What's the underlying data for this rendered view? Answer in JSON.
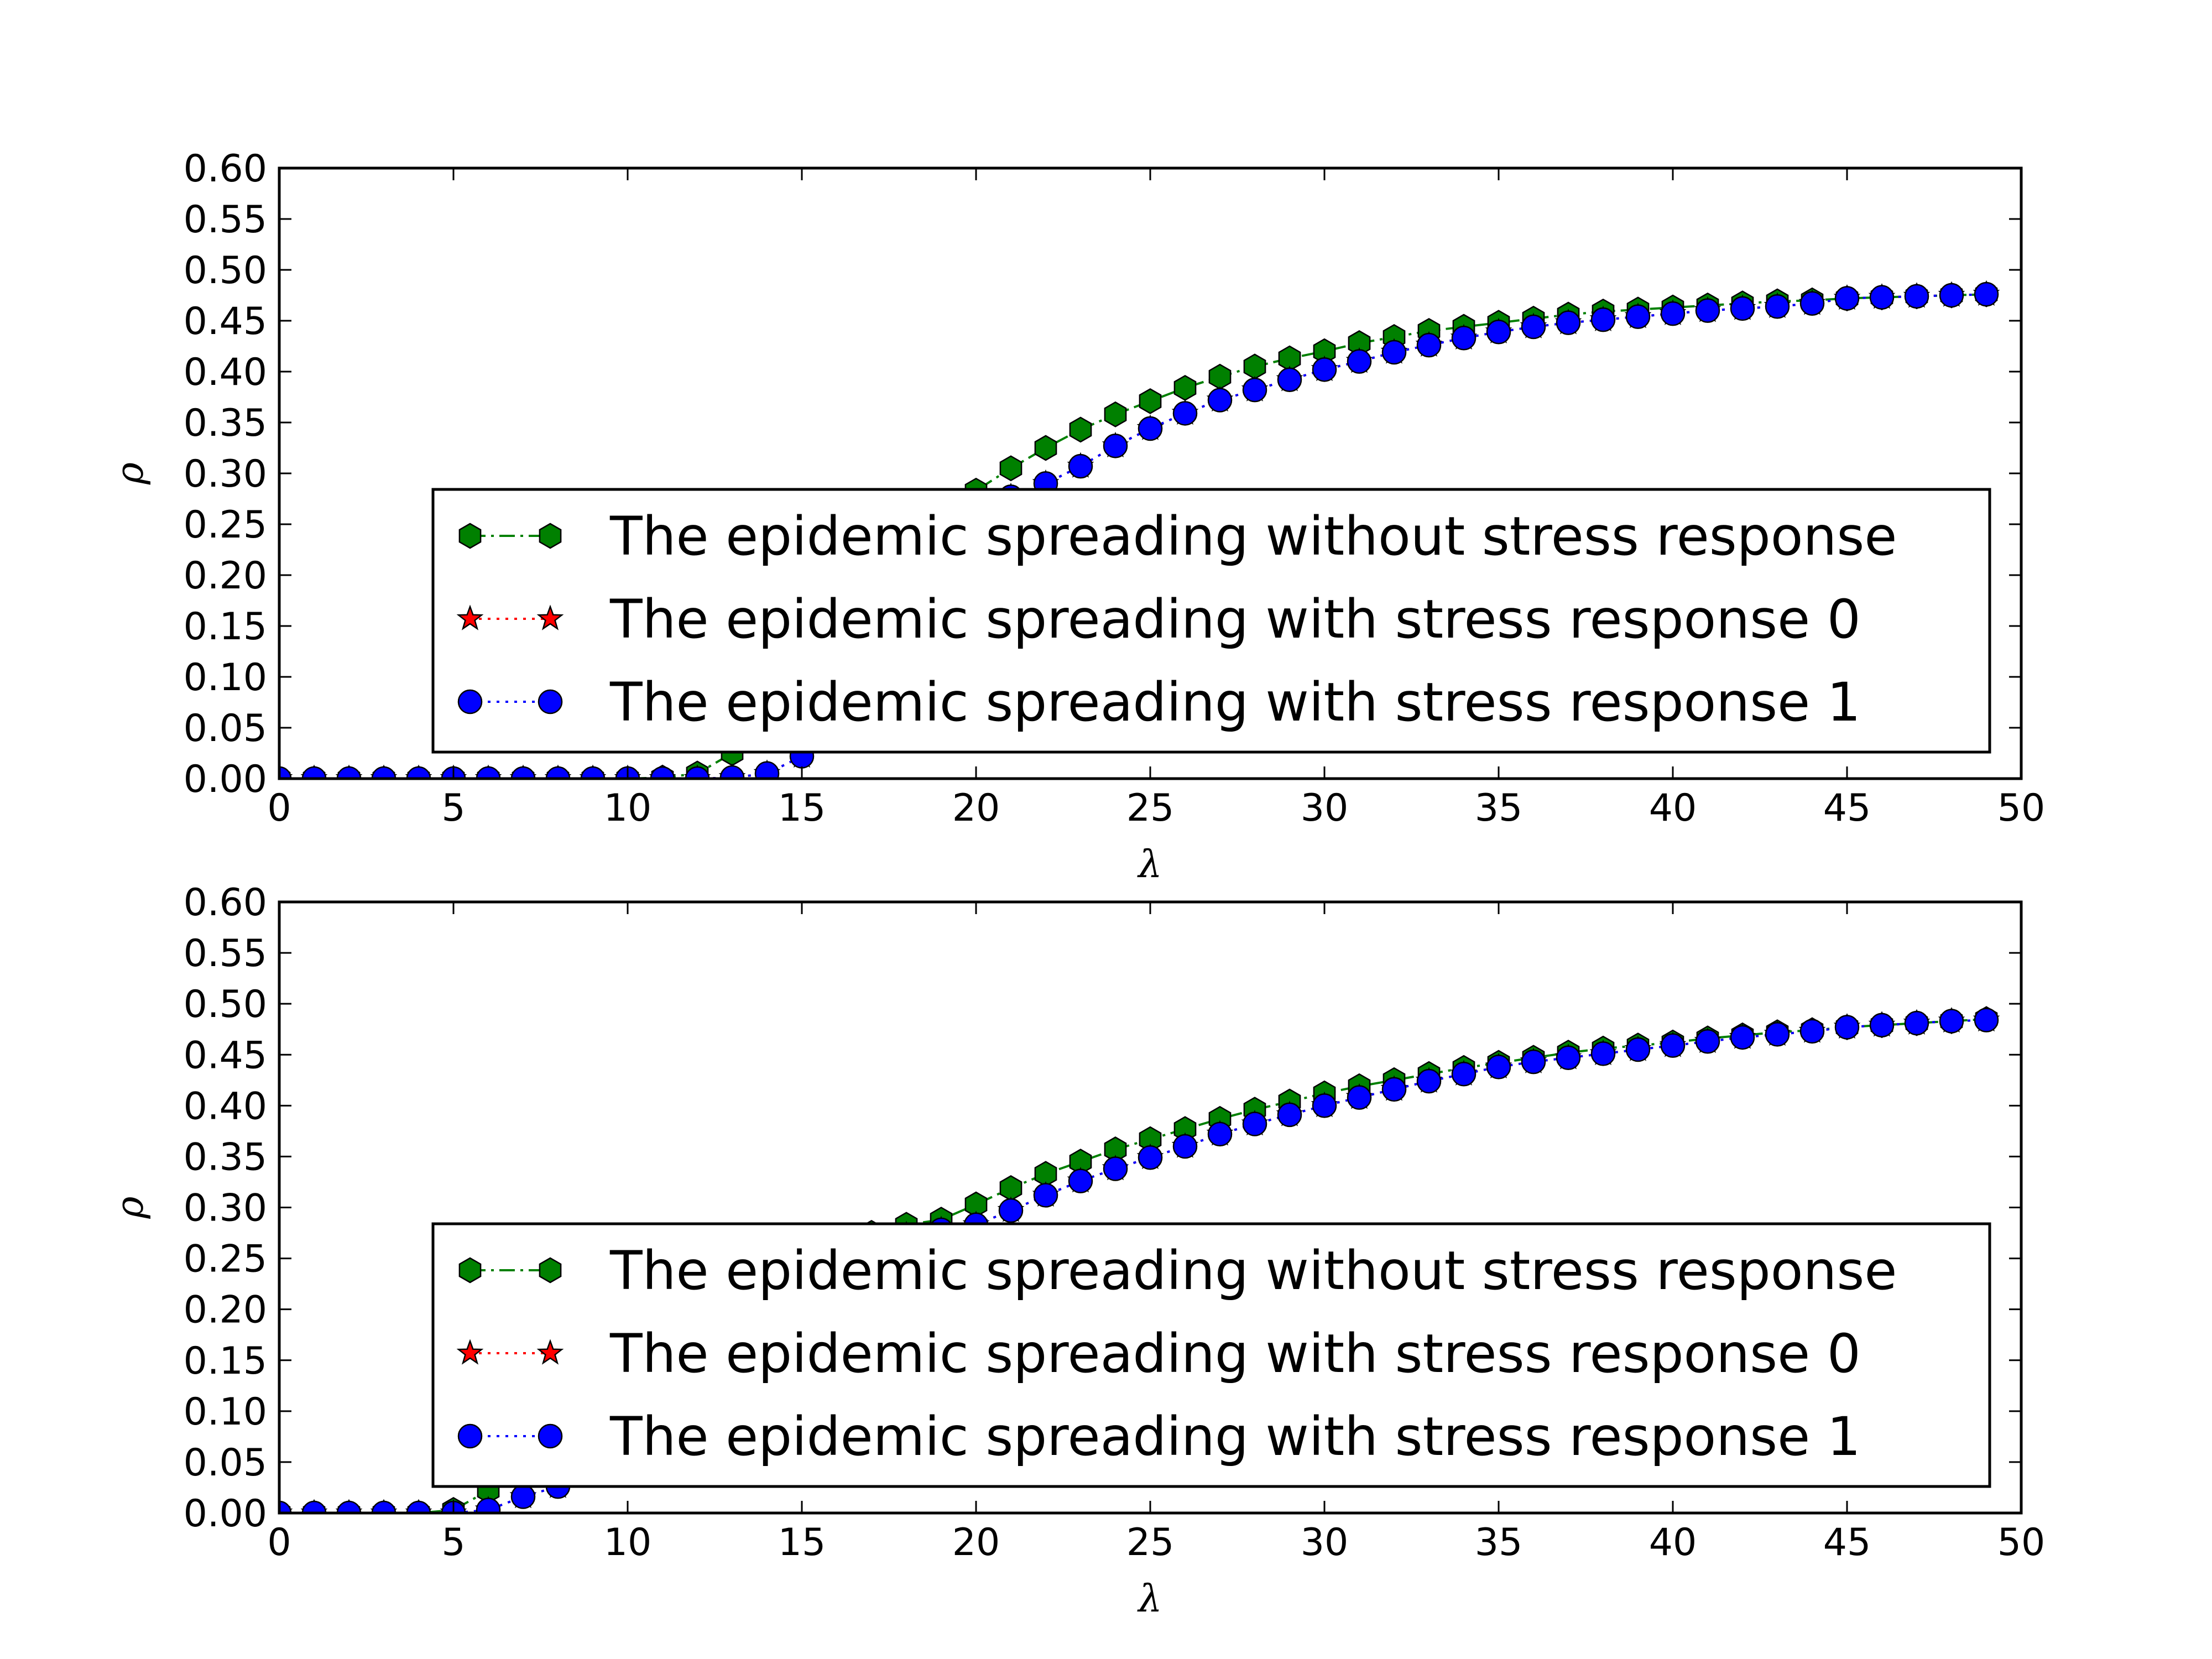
{
  "chart_data": [
    {
      "type": "line",
      "xlabel": "λ",
      "ylabel": "ρ",
      "xlim": [
        0,
        50
      ],
      "ylim": [
        0,
        0.6
      ],
      "xticks": [
        "0",
        "5",
        "10",
        "15",
        "20",
        "25",
        "30",
        "35",
        "40",
        "45",
        "50"
      ],
      "yticks": [
        "0.00",
        "0.05",
        "0.10",
        "0.15",
        "0.20",
        "0.25",
        "0.30",
        "0.35",
        "0.40",
        "0.45",
        "0.50",
        "0.55",
        "0.60"
      ],
      "grid": false,
      "legend_position": "lower-right",
      "x": [
        0,
        1,
        2,
        3,
        4,
        5,
        6,
        7,
        8,
        9,
        10,
        11,
        12,
        13,
        14,
        15,
        16,
        17,
        18,
        19,
        20,
        21,
        22,
        23,
        24,
        25,
        26,
        27,
        28,
        29,
        30,
        31,
        32,
        33,
        34,
        35,
        36,
        37,
        38,
        39,
        40,
        41,
        42,
        43,
        44,
        45,
        46,
        47,
        48,
        49
      ],
      "series": [
        {
          "name": "The epidemic spreading without stress response",
          "color": "#008000",
          "marker": "hexagon",
          "linestyle": "dashdot",
          "values": [
            0,
            0,
            0,
            0,
            0,
            0,
            0,
            0,
            0,
            0,
            0,
            0.001,
            0.005,
            0.025,
            0.06,
            0.1,
            0.14,
            0.18,
            0.22,
            0.25,
            0.283,
            0.305,
            0.325,
            0.343,
            0.358,
            0.371,
            0.384,
            0.395,
            0.405,
            0.413,
            0.42,
            0.428,
            0.434,
            0.44,
            0.444,
            0.448,
            0.452,
            0.456,
            0.459,
            0.461,
            0.463,
            0.465,
            0.467,
            0.469,
            0.47,
            0.472,
            0.473,
            0.474,
            0.475,
            0.476
          ]
        },
        {
          "name": "The epidemic spreading with stress response 0",
          "color": "#ff0000",
          "marker": "star",
          "linestyle": "dotted",
          "values": [
            0,
            0,
            0,
            0,
            0,
            0,
            0,
            0,
            0,
            0,
            0,
            0,
            0,
            0.001,
            0.005,
            0.022,
            0.06,
            0.12,
            0.18,
            0.23,
            0.265,
            0.277,
            0.29,
            0.307,
            0.327,
            0.344,
            0.359,
            0.372,
            0.382,
            0.392,
            0.402,
            0.41,
            0.419,
            0.426,
            0.433,
            0.439,
            0.444,
            0.448,
            0.451,
            0.454,
            0.457,
            0.46,
            0.462,
            0.464,
            0.467,
            0.472,
            0.473,
            0.474,
            0.475,
            0.476
          ]
        },
        {
          "name": "The epidemic spreading with stress response 1",
          "color": "#0000ff",
          "marker": "circle",
          "linestyle": "dotted",
          "values": [
            0,
            0,
            0,
            0,
            0,
            0,
            0,
            0,
            0,
            0,
            0,
            0,
            0,
            0.001,
            0.005,
            0.022,
            0.06,
            0.12,
            0.18,
            0.23,
            0.265,
            0.277,
            0.29,
            0.307,
            0.327,
            0.344,
            0.359,
            0.372,
            0.382,
            0.392,
            0.402,
            0.41,
            0.419,
            0.426,
            0.433,
            0.439,
            0.444,
            0.448,
            0.451,
            0.454,
            0.457,
            0.46,
            0.462,
            0.464,
            0.467,
            0.472,
            0.473,
            0.474,
            0.475,
            0.476
          ]
        }
      ]
    },
    {
      "type": "line",
      "xlabel": "λ",
      "ylabel": "ρ",
      "xlim": [
        0,
        50
      ],
      "ylim": [
        0,
        0.6
      ],
      "xticks": [
        "0",
        "5",
        "10",
        "15",
        "20",
        "25",
        "30",
        "35",
        "40",
        "45",
        "50"
      ],
      "yticks": [
        "0.00",
        "0.05",
        "0.10",
        "0.15",
        "0.20",
        "0.25",
        "0.30",
        "0.35",
        "0.40",
        "0.45",
        "0.50",
        "0.55",
        "0.60"
      ],
      "grid": false,
      "legend_position": "lower-right",
      "x": [
        0,
        1,
        2,
        3,
        4,
        5,
        6,
        7,
        8,
        9,
        10,
        11,
        12,
        13,
        14,
        15,
        16,
        17,
        18,
        19,
        20,
        21,
        22,
        23,
        24,
        25,
        26,
        27,
        28,
        29,
        30,
        31,
        32,
        33,
        34,
        35,
        36,
        37,
        38,
        39,
        40,
        41,
        42,
        43,
        44,
        45,
        46,
        47,
        48,
        49
      ],
      "series": [
        {
          "name": "The epidemic spreading without stress response",
          "color": "#008000",
          "marker": "hexagon",
          "linestyle": "dashdot",
          "values": [
            0,
            0,
            0,
            0,
            0,
            0.003,
            0.022,
            0.045,
            0.07,
            0.1,
            0.13,
            0.16,
            0.19,
            0.21,
            0.23,
            0.25,
            0.265,
            0.275,
            0.283,
            0.288,
            0.303,
            0.319,
            0.333,
            0.345,
            0.357,
            0.367,
            0.377,
            0.387,
            0.396,
            0.404,
            0.412,
            0.419,
            0.425,
            0.431,
            0.437,
            0.442,
            0.447,
            0.452,
            0.456,
            0.459,
            0.462,
            0.466,
            0.469,
            0.472,
            0.474,
            0.477,
            0.479,
            0.481,
            0.483,
            0.485
          ]
        },
        {
          "name": "The epidemic spreading with stress response 0",
          "color": "#ff0000",
          "marker": "star",
          "linestyle": "dotted",
          "values": [
            0,
            0,
            0,
            0,
            0,
            0,
            0.003,
            0.016,
            0.026,
            0.05,
            0.08,
            0.11,
            0.14,
            0.17,
            0.2,
            0.225,
            0.245,
            0.262,
            0.273,
            0.278,
            0.283,
            0.297,
            0.312,
            0.326,
            0.338,
            0.349,
            0.36,
            0.372,
            0.382,
            0.391,
            0.4,
            0.408,
            0.416,
            0.424,
            0.431,
            0.438,
            0.443,
            0.447,
            0.451,
            0.455,
            0.459,
            0.463,
            0.467,
            0.47,
            0.473,
            0.477,
            0.479,
            0.481,
            0.483,
            0.484
          ]
        },
        {
          "name": "The epidemic spreading with stress response 1",
          "color": "#0000ff",
          "marker": "circle",
          "linestyle": "dotted",
          "values": [
            0,
            0,
            0,
            0,
            0,
            0,
            0.003,
            0.016,
            0.026,
            0.05,
            0.08,
            0.11,
            0.14,
            0.17,
            0.2,
            0.225,
            0.245,
            0.262,
            0.273,
            0.278,
            0.283,
            0.297,
            0.312,
            0.326,
            0.338,
            0.349,
            0.36,
            0.372,
            0.382,
            0.391,
            0.4,
            0.408,
            0.416,
            0.424,
            0.431,
            0.438,
            0.443,
            0.447,
            0.451,
            0.455,
            0.459,
            0.463,
            0.467,
            0.47,
            0.473,
            0.477,
            0.479,
            0.481,
            0.483,
            0.484
          ]
        }
      ]
    }
  ]
}
